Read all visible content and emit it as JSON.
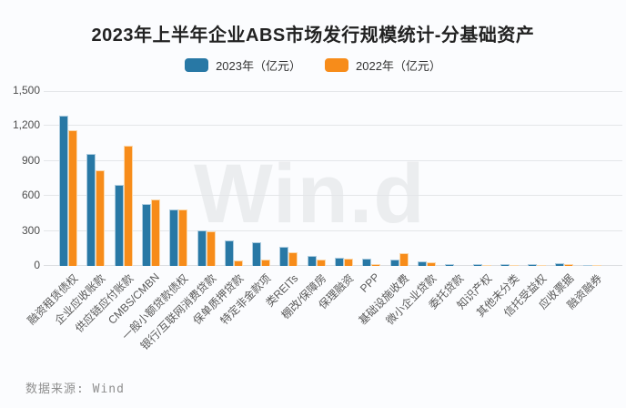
{
  "title": "2023年上半年企业ABS市场发行规模统计-分基础资产",
  "legend": [
    {
      "label": "2023年（亿元）",
      "color": "#2878A5"
    },
    {
      "label": "2022年（亿元）",
      "color": "#F78C1A"
    }
  ],
  "watermark": "Win.d",
  "source": "数据来源: Wind",
  "chart_data": {
    "type": "bar",
    "title": "2023年上半年企业ABS市场发行规模统计-分基础资产",
    "categories": [
      "融资租赁债权",
      "企业应收账款",
      "供应链应付账款",
      "CMBS/CMBN",
      "一般小额贷款债权",
      "银行/互联网消费贷款",
      "保单质押贷款",
      "特定非金款项",
      "类REITs",
      "棚改/保障房",
      "保理融资",
      "PPP",
      "基础设施收费",
      "微小企业贷款",
      "委托贷款",
      "知识产权",
      "其他未分类",
      "信托受益权",
      "应收票据",
      "融资融券"
    ],
    "series": [
      {
        "name": "2023年（亿元）",
        "color": "#2878A5",
        "values": [
          1288,
          960,
          693,
          530,
          483,
          307,
          215,
          205,
          162,
          88,
          70,
          62,
          57,
          39,
          16,
          18,
          18,
          18,
          20,
          5
        ]
      },
      {
        "name": "2022年（亿元）",
        "color": "#F78C1A",
        "values": [
          1165,
          823,
          1030,
          572,
          481,
          294,
          50,
          55,
          115,
          52,
          65,
          18,
          110,
          34,
          0,
          3,
          10,
          2,
          14,
          2
        ]
      }
    ],
    "xlabel": "",
    "ylabel": "",
    "ylim": [
      0,
      1500
    ],
    "yticks": [
      0,
      300,
      600,
      900,
      1200,
      1500
    ],
    "ytick_labels": [
      "0",
      "300",
      "600",
      "900",
      "1,200",
      "1,500"
    ],
    "grid": true,
    "legend_position": "top",
    "source": "数据来源: Wind"
  }
}
